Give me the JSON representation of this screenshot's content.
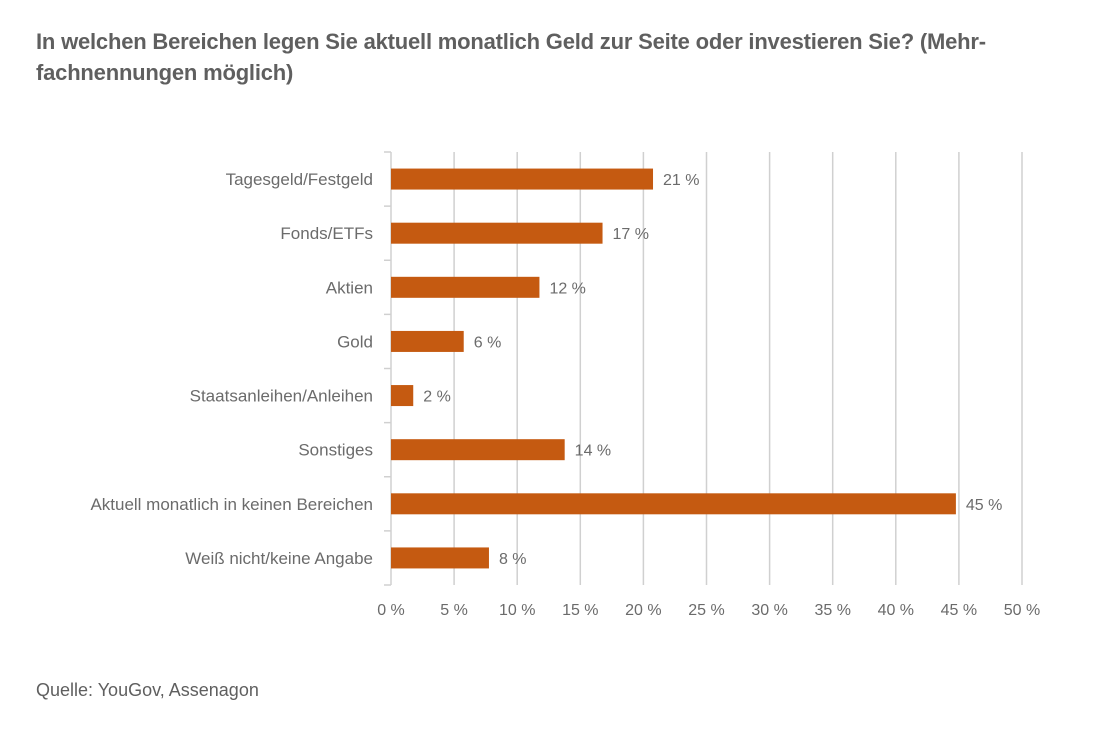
{
  "title": "In welchen Bereichen legen Sie aktuell monatlich Geld zur Seite oder investieren Sie? (Mehr-fachnennungen möglich)",
  "title_lines": [
    "In welchen Bereichen legen Sie aktuell monatlich Geld zur Seite oder investieren Sie? (Mehr-",
    "fachnennungen möglich)"
  ],
  "source": "Quelle: YouGov, Assenagon",
  "colors": {
    "bar": "#C55A11",
    "grid": "#d0d0d0",
    "text": "#6b6b6b"
  },
  "chart_data": {
    "type": "bar",
    "orientation": "horizontal",
    "title": "In welchen Bereichen legen Sie aktuell monatlich Geld zur Seite oder investieren Sie? (Mehrfachnennungen möglich)",
    "categories": [
      "Tagesgeld/Festgeld",
      "Fonds/ETFs",
      "Aktien",
      "Gold",
      "Staatsanleihen/Anleihen",
      "Sonstiges",
      "Aktuell monatlich in keinen Bereichen",
      "Weiß nicht/keine Angabe"
    ],
    "values": [
      21,
      17,
      12,
      6,
      2,
      14,
      45,
      8
    ],
    "value_labels": [
      "21 %",
      "17 %",
      "12 %",
      "6 %",
      "2 %",
      "14 %",
      "45 %",
      "8 %"
    ],
    "xlabel": "",
    "ylabel": "",
    "xlim": [
      0,
      50
    ],
    "xticks": [
      0,
      5,
      10,
      15,
      20,
      25,
      30,
      35,
      40,
      45,
      50
    ],
    "xtick_labels": [
      "0 %",
      "5 %",
      "10 %",
      "15 %",
      "20 %",
      "25 %",
      "30 %",
      "35 %",
      "40 %",
      "45 %",
      "50 %"
    ],
    "grid": "vertical",
    "legend": "none",
    "source": "Quelle: YouGov, Assenagon"
  }
}
